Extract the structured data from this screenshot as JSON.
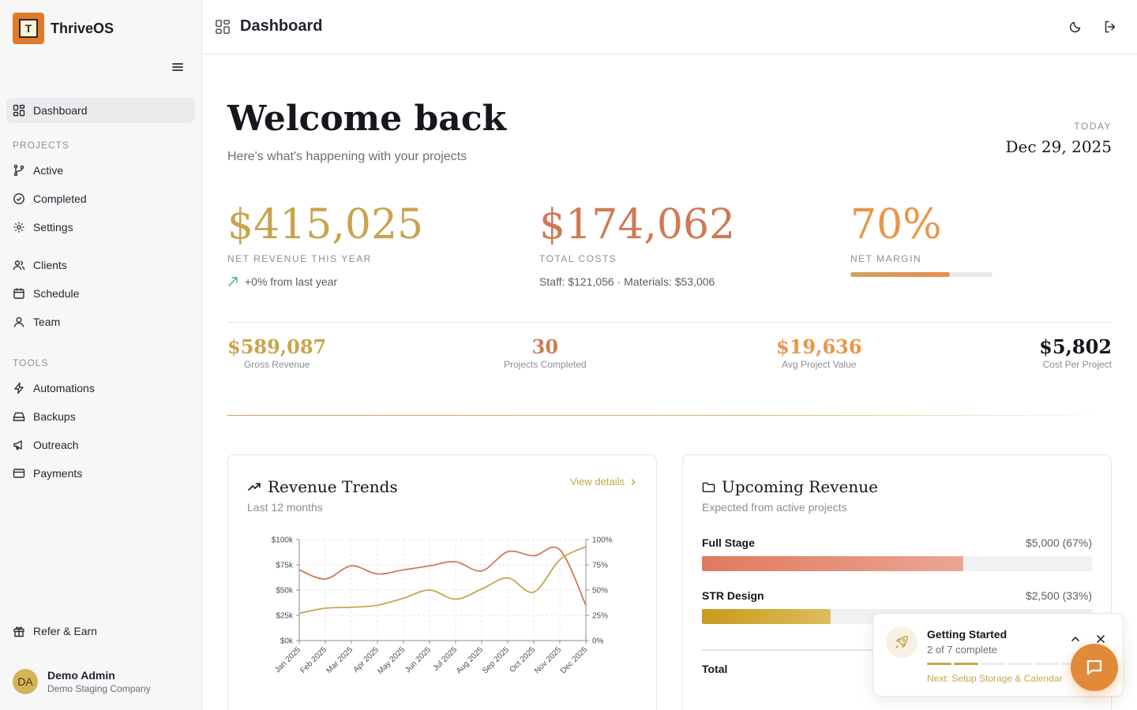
{
  "app": {
    "name": "ThriveOS",
    "logo_letter": "T"
  },
  "sidebar": {
    "dashboard": "Dashboard",
    "projects_heading": "PROJECTS",
    "projects": [
      {
        "label": "Active",
        "icon": "git-branch-icon"
      },
      {
        "label": "Completed",
        "icon": "check-circle-icon"
      },
      {
        "label": "Settings",
        "icon": "gear-icon"
      }
    ],
    "people": [
      {
        "label": "Clients",
        "icon": "users-icon"
      },
      {
        "label": "Schedule",
        "icon": "calendar-icon"
      },
      {
        "label": "Team",
        "icon": "user-icon"
      }
    ],
    "tools_heading": "TOOLS",
    "tools": [
      {
        "label": "Automations",
        "icon": "lightning-icon"
      },
      {
        "label": "Backups",
        "icon": "hard-drive-icon"
      },
      {
        "label": "Outreach",
        "icon": "megaphone-icon"
      },
      {
        "label": "Payments",
        "icon": "credit-card-icon"
      }
    ],
    "refer": "Refer & Earn",
    "user": {
      "initials": "DA",
      "name": "Demo Admin",
      "company": "Demo Staging Company"
    }
  },
  "header": {
    "title": "Dashboard"
  },
  "welcome": {
    "title": "Welcome back",
    "subtitle": "Here's what's happening with your projects",
    "today_label": "TODAY",
    "today_date": "Dec 29, 2025"
  },
  "kpis": {
    "revenue": {
      "value": "$415,025",
      "label": "NET REVENUE THIS YEAR",
      "sub": "+0% from last year",
      "color": "#c9a44b"
    },
    "costs": {
      "value": "$174,062",
      "label": "TOTAL COSTS",
      "sub": "Staff: $121,056 · Materials: $53,006",
      "color": "#cf7a55"
    },
    "margin": {
      "value": "70%",
      "label": "NET MARGIN",
      "percent": 70,
      "color": "#e9954a"
    }
  },
  "stats": [
    {
      "value": "$589,087",
      "label": "Gross Revenue",
      "color": "#c9a44b"
    },
    {
      "value": "30",
      "label": "Projects Completed",
      "color": "#cf7a55"
    },
    {
      "value": "$19,636",
      "label": "Avg Project Value",
      "color": "#e9954a"
    },
    {
      "value": "$5,802",
      "label": "Cost Per Project",
      "color": "#15171d"
    }
  ],
  "revenue_trends": {
    "title": "Revenue Trends",
    "subtitle": "Last 12 months",
    "view_details": "View details"
  },
  "chart_data": {
    "type": "line",
    "categories": [
      "Jan 2025",
      "Feb 2025",
      "Mar 2025",
      "Apr 2025",
      "May 2025",
      "Jun 2025",
      "Jul 2025",
      "Aug 2025",
      "Sep 2025",
      "Oct 2025",
      "Nov 2025",
      "Dec 2025"
    ],
    "y_left_ticks": [
      "$0k",
      "$25k",
      "$50k",
      "$75k",
      "$100k"
    ],
    "y_right_ticks": [
      "0%",
      "25%",
      "50%",
      "75%",
      "100%"
    ],
    "ylim_left": [
      0,
      100
    ],
    "ylim_right": [
      0,
      100
    ],
    "series": [
      {
        "axis": "left",
        "color": "#cf7a55",
        "values": [
          70,
          61,
          74,
          66,
          70,
          74,
          78,
          69,
          88,
          84,
          90,
          35
        ]
      },
      {
        "axis": "right",
        "color": "#c9a44b",
        "values": [
          27,
          32,
          33,
          35,
          42,
          50,
          41,
          51,
          62,
          48,
          80,
          93
        ]
      }
    ],
    "grid": true
  },
  "upcoming": {
    "title": "Upcoming Revenue",
    "subtitle": "Expected from active projects",
    "rows": [
      {
        "name": "Full Stage",
        "amount": "$5,000 (67%)",
        "percent": 67,
        "color": "#e07a5f"
      },
      {
        "name": "STR Design",
        "amount": "$2,500 (33%)",
        "percent": 33,
        "color": "#c99a1a"
      }
    ],
    "total_label": "Total"
  },
  "getting_started": {
    "title": "Getting Started",
    "progress": "2 of 7 complete",
    "completed_steps": 2,
    "total_steps": 7,
    "next": "Next: Setup Storage & Calendar"
  }
}
